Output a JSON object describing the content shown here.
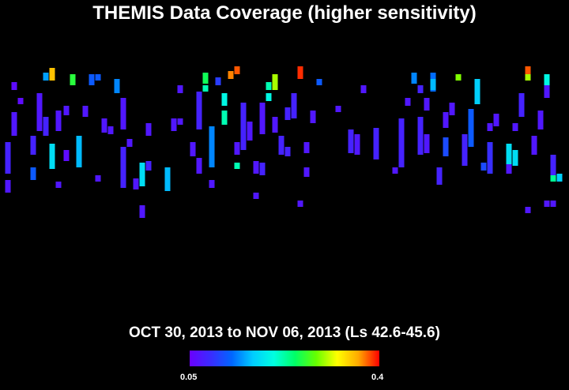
{
  "chart_data": {
    "type": "heatmap",
    "title": "THEMIS Data Coverage (higher sensitivity)",
    "subtitle": "OCT 30, 2013 to NOV 06, 2013 (Ls 42.6-45.6)",
    "colorbar": {
      "min_label": "0.05",
      "max_label": "0.4",
      "min": 0.05,
      "max": 0.4,
      "colors": [
        "#6a00ff",
        "#3a2cff",
        "#0066ff",
        "#00ccff",
        "#00ffe0",
        "#00ff66",
        "#66ff00",
        "#ffff00",
        "#ffaa00",
        "#ff0000"
      ]
    },
    "tracks": [
      {
        "lon": 10,
        "segments": [
          [
            180,
            40,
            0.08
          ],
          [
            228,
            16,
            0.07
          ]
        ]
      },
      {
        "lon": 18,
        "segments": [
          [
            142,
            30,
            0.07
          ],
          [
            104,
            10,
            0.06
          ]
        ]
      },
      {
        "lon": 26,
        "segments": [
          [
            124,
            8,
            0.06
          ]
        ]
      },
      {
        "lon": 42,
        "segments": [
          [
            172,
            24,
            0.08
          ],
          [
            212,
            16,
            0.12
          ]
        ]
      },
      {
        "lon": 50,
        "segments": [
          [
            118,
            48,
            0.07
          ]
        ]
      },
      {
        "lon": 58,
        "segments": [
          [
            92,
            10,
            0.15
          ],
          [
            148,
            24,
            0.08
          ]
        ]
      },
      {
        "lon": 66,
        "segments": [
          [
            86,
            16,
            0.35
          ],
          [
            182,
            32,
            0.18
          ]
        ]
      },
      {
        "lon": 74,
        "segments": [
          [
            140,
            26,
            0.07
          ],
          [
            230,
            8,
            0.07
          ]
        ]
      },
      {
        "lon": 84,
        "segments": [
          [
            134,
            12,
            0.07
          ],
          [
            190,
            14,
            0.06
          ]
        ]
      },
      {
        "lon": 92,
        "segments": [
          [
            94,
            14,
            0.26
          ]
        ]
      },
      {
        "lon": 100,
        "segments": [
          [
            172,
            40,
            0.16
          ]
        ]
      },
      {
        "lon": 108,
        "segments": [
          [
            134,
            14,
            0.07
          ]
        ]
      },
      {
        "lon": 116,
        "segments": [
          [
            94,
            14,
            0.12
          ]
        ]
      },
      {
        "lon": 124,
        "segments": [
          [
            94,
            8,
            0.12
          ],
          [
            222,
            8,
            0.07
          ]
        ]
      },
      {
        "lon": 132,
        "segments": [
          [
            150,
            18,
            0.07
          ]
        ]
      },
      {
        "lon": 140,
        "segments": [
          [
            160,
            10,
            0.07
          ]
        ]
      },
      {
        "lon": 148,
        "segments": [
          [
            100,
            18,
            0.14
          ]
        ]
      },
      {
        "lon": 156,
        "segments": [
          [
            186,
            52,
            0.08
          ],
          [
            124,
            40,
            0.07
          ]
        ]
      },
      {
        "lon": 164,
        "segments": [
          [
            176,
            10,
            0.07
          ]
        ]
      },
      {
        "lon": 172,
        "segments": [
          [
            226,
            14,
            0.07
          ]
        ]
      },
      {
        "lon": 180,
        "segments": [
          [
            206,
            30,
            0.18
          ],
          [
            260,
            16,
            0.07
          ]
        ]
      },
      {
        "lon": 188,
        "segments": [
          [
            156,
            16,
            0.07
          ],
          [
            204,
            12,
            0.08
          ]
        ]
      },
      {
        "lon": 212,
        "segments": [
          [
            212,
            30,
            0.16
          ]
        ]
      },
      {
        "lon": 220,
        "segments": [
          [
            150,
            16,
            0.07
          ]
        ]
      },
      {
        "lon": 228,
        "segments": [
          [
            108,
            10,
            0.07
          ],
          [
            150,
            8,
            0.07
          ]
        ]
      },
      {
        "lon": 244,
        "segments": [
          [
            180,
            18,
            0.07
          ]
        ]
      },
      {
        "lon": 252,
        "segments": [
          [
            116,
            48,
            0.08
          ],
          [
            200,
            20,
            0.07
          ]
        ]
      },
      {
        "lon": 260,
        "segments": [
          [
            92,
            14,
            0.25
          ],
          [
            108,
            8,
            0.22
          ]
        ]
      },
      {
        "lon": 268,
        "segments": [
          [
            160,
            52,
            0.14
          ],
          [
            228,
            10,
            0.07
          ]
        ]
      },
      {
        "lon": 276,
        "segments": [
          [
            98,
            10,
            0.1
          ]
        ]
      },
      {
        "lon": 284,
        "segments": [
          [
            118,
            16,
            0.2
          ],
          [
            140,
            18,
            0.22
          ]
        ]
      },
      {
        "lon": 292,
        "segments": [
          [
            90,
            10,
            0.37
          ]
        ]
      },
      {
        "lon": 300,
        "segments": [
          [
            84,
            10,
            0.38
          ],
          [
            180,
            16,
            0.07
          ],
          [
            206,
            8,
            0.22
          ]
        ]
      },
      {
        "lon": 308,
        "segments": [
          [
            130,
            60,
            0.08
          ]
        ]
      },
      {
        "lon": 316,
        "segments": [
          [
            154,
            24,
            0.07
          ]
        ]
      },
      {
        "lon": 324,
        "segments": [
          [
            204,
            16,
            0.07
          ],
          [
            244,
            8,
            0.07
          ]
        ]
      },
      {
        "lon": 332,
        "segments": [
          [
            130,
            40,
            0.07
          ],
          [
            206,
            16,
            0.08
          ]
        ]
      },
      {
        "lon": 340,
        "segments": [
          [
            118,
            10,
            0.2
          ],
          [
            104,
            10,
            0.22
          ]
        ]
      },
      {
        "lon": 348,
        "segments": [
          [
            94,
            20,
            0.3
          ],
          [
            148,
            20,
            0.07
          ]
        ]
      },
      {
        "lon": 356,
        "segments": [
          [
            172,
            24,
            0.08
          ]
        ]
      },
      {
        "lon": 364,
        "segments": [
          [
            136,
            16,
            0.08
          ],
          [
            186,
            12,
            0.08
          ]
        ]
      },
      {
        "lon": 372,
        "segments": [
          [
            118,
            32,
            0.08
          ]
        ]
      },
      {
        "lon": 380,
        "segments": [
          [
            84,
            16,
            0.39
          ],
          [
            254,
            8,
            0.07
          ]
        ]
      },
      {
        "lon": 388,
        "segments": [
          [
            180,
            14,
            0.07
          ],
          [
            212,
            12,
            0.07
          ]
        ]
      },
      {
        "lon": 396,
        "segments": [
          [
            140,
            16,
            0.07
          ]
        ]
      },
      {
        "lon": 404,
        "segments": [
          [
            100,
            8,
            0.12
          ]
        ]
      },
      {
        "lon": 428,
        "segments": [
          [
            134,
            8,
            0.07
          ]
        ]
      },
      {
        "lon": 444,
        "segments": [
          [
            164,
            30,
            0.08
          ]
        ]
      },
      {
        "lon": 452,
        "segments": [
          [
            170,
            26,
            0.07
          ]
        ]
      },
      {
        "lon": 460,
        "segments": [
          [
            108,
            10,
            0.07
          ]
        ]
      },
      {
        "lon": 476,
        "segments": [
          [
            162,
            40,
            0.08
          ]
        ]
      },
      {
        "lon": 500,
        "segments": [
          [
            212,
            8,
            0.07
          ]
        ]
      },
      {
        "lon": 508,
        "segments": [
          [
            150,
            62,
            0.08
          ]
        ]
      },
      {
        "lon": 516,
        "segments": [
          [
            124,
            10,
            0.07
          ]
        ]
      },
      {
        "lon": 524,
        "segments": [
          [
            92,
            14,
            0.14
          ]
        ]
      },
      {
        "lon": 532,
        "segments": [
          [
            148,
            48,
            0.08
          ],
          [
            108,
            10,
            0.08
          ]
        ]
      },
      {
        "lon": 540,
        "segments": [
          [
            124,
            16,
            0.07
          ],
          [
            170,
            24,
            0.07
          ]
        ]
      },
      {
        "lon": 548,
        "segments": [
          [
            92,
            24,
            0.13
          ],
          [
            100,
            14,
            0.16
          ]
        ]
      },
      {
        "lon": 556,
        "segments": [
          [
            212,
            22,
            0.08
          ]
        ]
      },
      {
        "lon": 564,
        "segments": [
          [
            142,
            20,
            0.07
          ],
          [
            174,
            24,
            0.11
          ]
        ]
      },
      {
        "lon": 572,
        "segments": [
          [
            130,
            16,
            0.07
          ]
        ]
      },
      {
        "lon": 580,
        "segments": [
          [
            94,
            8,
            0.29
          ]
        ]
      },
      {
        "lon": 588,
        "segments": [
          [
            170,
            40,
            0.08
          ]
        ]
      },
      {
        "lon": 596,
        "segments": [
          [
            138,
            48,
            0.12
          ]
        ]
      },
      {
        "lon": 604,
        "segments": [
          [
            100,
            32,
            0.17
          ]
        ]
      },
      {
        "lon": 612,
        "segments": [
          [
            206,
            10,
            0.11
          ]
        ]
      },
      {
        "lon": 620,
        "segments": [
          [
            180,
            40,
            0.09
          ],
          [
            156,
            10,
            0.07
          ]
        ]
      },
      {
        "lon": 628,
        "segments": [
          [
            144,
            16,
            0.07
          ]
        ]
      },
      {
        "lon": 644,
        "segments": [
          [
            182,
            30,
            0.18
          ],
          [
            208,
            12,
            0.07
          ]
        ]
      },
      {
        "lon": 652,
        "segments": [
          [
            190,
            20,
            0.18
          ],
          [
            156,
            10,
            0.07
          ]
        ]
      },
      {
        "lon": 660,
        "segments": [
          [
            118,
            30,
            0.08
          ]
        ]
      },
      {
        "lon": 668,
        "segments": [
          [
            84,
            10,
            0.38
          ],
          [
            262,
            8,
            0.07
          ],
          [
            94,
            8,
            0.3
          ]
        ]
      },
      {
        "lon": 676,
        "segments": [
          [
            172,
            24,
            0.07
          ]
        ]
      },
      {
        "lon": 684,
        "segments": [
          [
            140,
            24,
            0.07
          ]
        ]
      },
      {
        "lon": 692,
        "segments": [
          [
            94,
            14,
            0.2
          ],
          [
            108,
            16,
            0.07
          ],
          [
            254,
            8,
            0.07
          ]
        ]
      },
      {
        "lon": 700,
        "segments": [
          [
            196,
            30,
            0.08
          ],
          [
            222,
            8,
            0.23
          ],
          [
            254,
            8,
            0.07
          ]
        ]
      },
      {
        "lon": 708,
        "segments": [
          [
            220,
            10,
            0.17
          ]
        ]
      }
    ]
  }
}
